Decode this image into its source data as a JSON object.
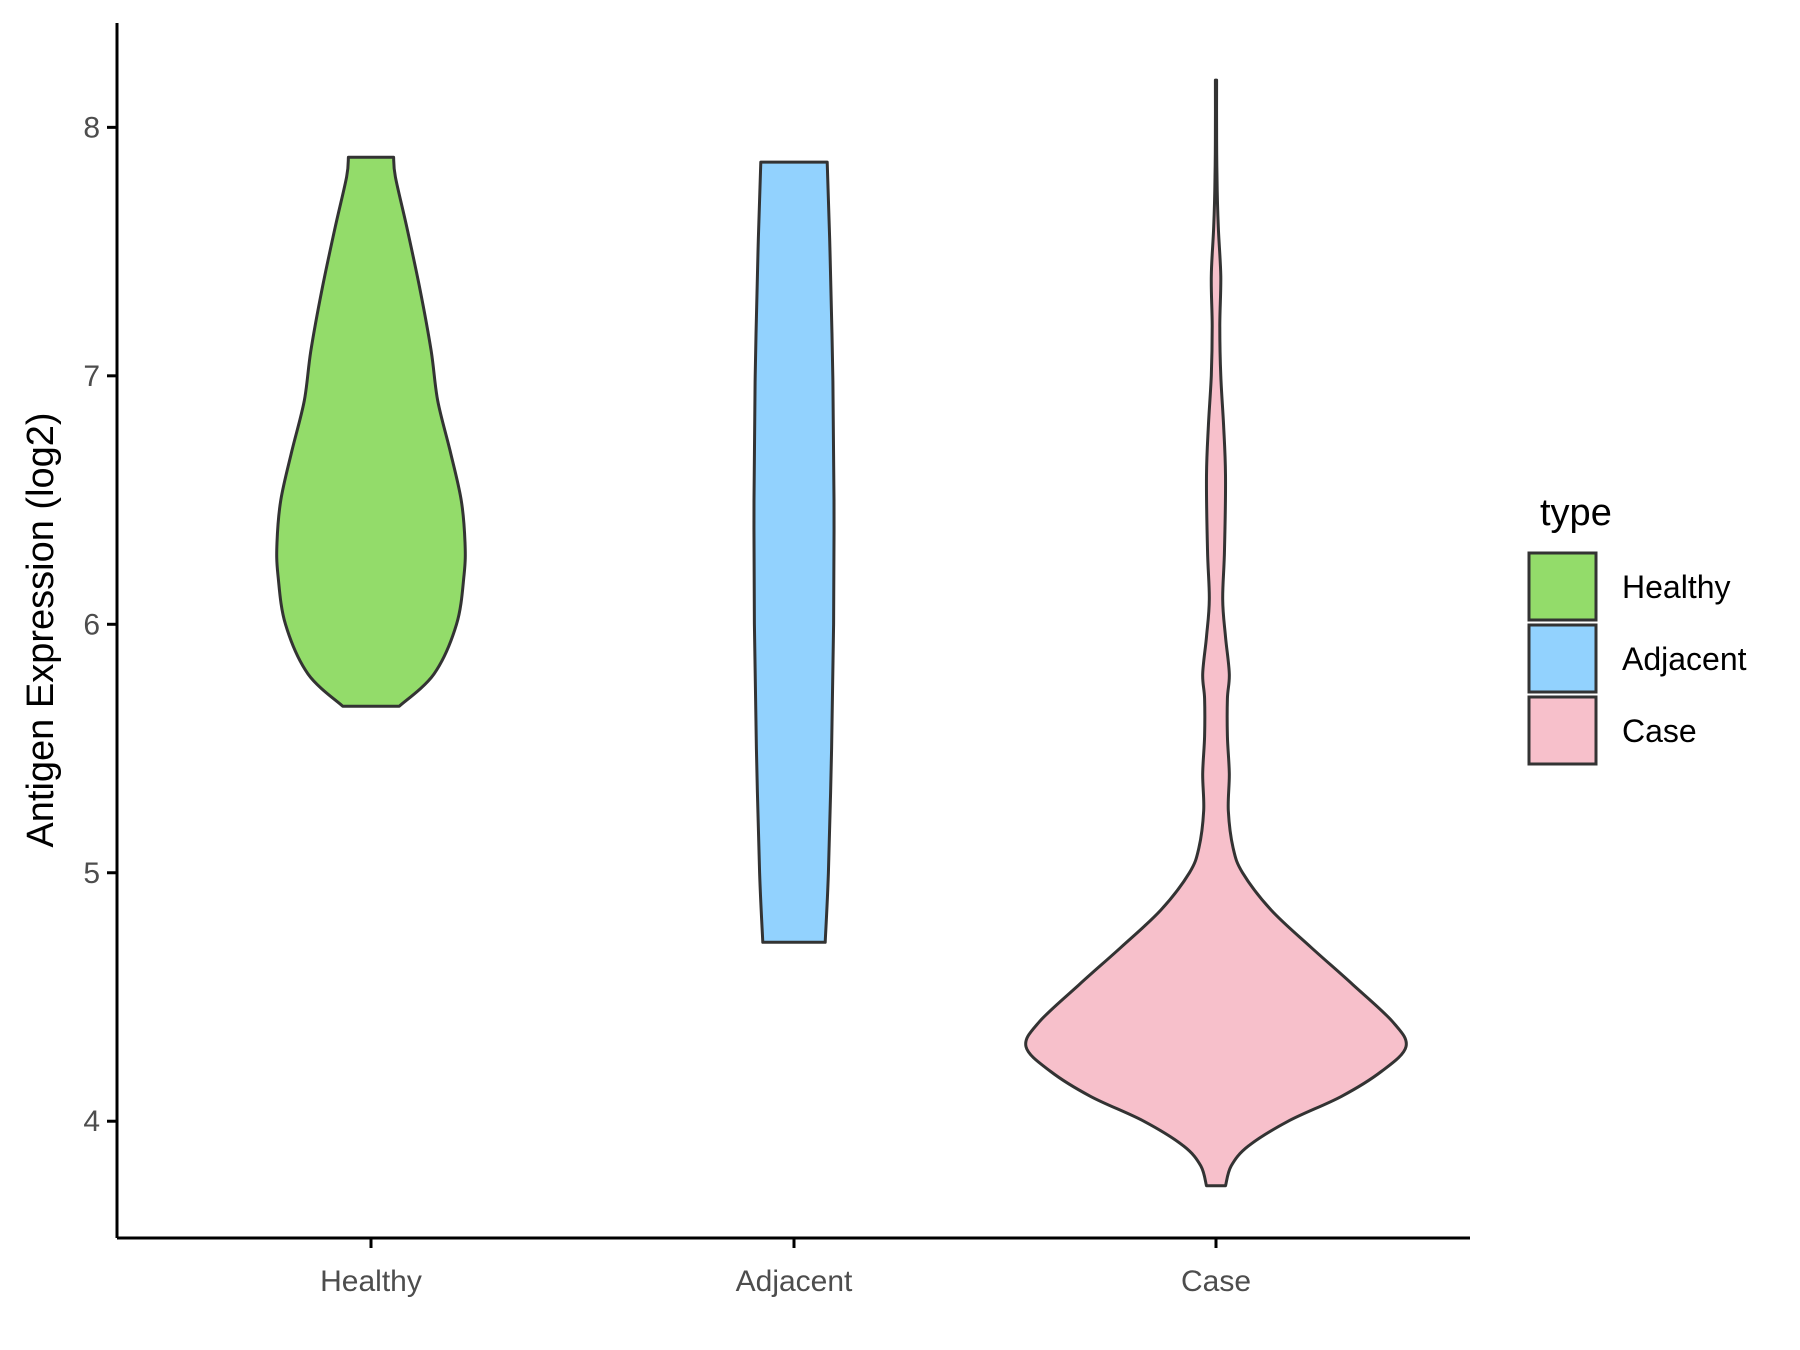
{
  "chart_data": {
    "type": "violin",
    "ylabel": "Antigen Expression (log2)",
    "xlabel": "",
    "categories": [
      "Healthy",
      "Adjacent",
      "Case"
    ],
    "y_ticks": [
      "4",
      "5",
      "6",
      "7",
      "8"
    ],
    "ylim": [
      3.53,
      8.42
    ],
    "grid": false,
    "legend": {
      "title": "type",
      "position": "right",
      "entries": [
        "Healthy",
        "Adjacent",
        "Case"
      ]
    },
    "colors": {
      "Healthy": "#93dc6a",
      "Adjacent": "#92d2fe",
      "Case": "#f7c0cb",
      "outline": "#333333"
    },
    "series": [
      {
        "category": "Healthy",
        "y_min": 5.67,
        "y_max": 7.88,
        "density_profile": [
          [
            5.67,
            0.3
          ],
          [
            5.8,
            0.67
          ],
          [
            6.0,
            0.91
          ],
          [
            6.2,
            0.99
          ],
          [
            6.33,
            1.0
          ],
          [
            6.5,
            0.96
          ],
          [
            6.7,
            0.84
          ],
          [
            6.9,
            0.71
          ],
          [
            7.1,
            0.64
          ],
          [
            7.35,
            0.52
          ],
          [
            7.6,
            0.38
          ],
          [
            7.8,
            0.26
          ],
          [
            7.88,
            0.24
          ]
        ]
      },
      {
        "category": "Adjacent",
        "y_min": 4.72,
        "y_max": 7.86,
        "density_profile": [
          [
            4.72,
            0.78
          ],
          [
            5.0,
            0.86
          ],
          [
            5.5,
            0.94
          ],
          [
            6.0,
            0.99
          ],
          [
            6.5,
            1.0
          ],
          [
            7.0,
            0.97
          ],
          [
            7.5,
            0.9
          ],
          [
            7.86,
            0.83
          ]
        ]
      },
      {
        "category": "Case",
        "y_min": 3.74,
        "y_max": 8.19,
        "density_profile": [
          [
            3.74,
            0.05
          ],
          [
            3.82,
            0.08
          ],
          [
            3.9,
            0.17
          ],
          [
            4.0,
            0.38
          ],
          [
            4.1,
            0.66
          ],
          [
            4.2,
            0.87
          ],
          [
            4.3,
            1.0
          ],
          [
            4.4,
            0.93
          ],
          [
            4.55,
            0.72
          ],
          [
            4.7,
            0.5
          ],
          [
            4.85,
            0.29
          ],
          [
            5.0,
            0.14
          ],
          [
            5.1,
            0.09
          ],
          [
            5.25,
            0.065
          ],
          [
            5.4,
            0.07
          ],
          [
            5.55,
            0.06
          ],
          [
            5.7,
            0.06
          ],
          [
            5.8,
            0.07
          ],
          [
            5.95,
            0.05
          ],
          [
            6.1,
            0.035
          ],
          [
            6.3,
            0.045
          ],
          [
            6.6,
            0.05
          ],
          [
            6.8,
            0.04
          ],
          [
            7.0,
            0.025
          ],
          [
            7.2,
            0.02
          ],
          [
            7.4,
            0.025
          ],
          [
            7.6,
            0.012
          ],
          [
            7.8,
            0.005
          ],
          [
            8.0,
            0.003
          ],
          [
            8.19,
            0.003
          ]
        ]
      }
    ]
  }
}
